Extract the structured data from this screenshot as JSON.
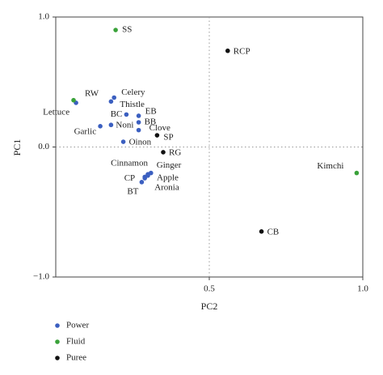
{
  "chart_data": {
    "type": "scatter",
    "x_label": "PC2",
    "y_label": "PC1",
    "xlim": [
      0,
      1
    ],
    "ylim": [
      -1,
      1
    ],
    "xticks": [
      0.5,
      {
        "value": 1,
        "label": "1.0"
      }
    ],
    "yticks": [
      {
        "value": -1,
        "label": "−1.0"
      },
      {
        "value": 0,
        "label": "0.0"
      },
      {
        "value": 1,
        "label": "1.0"
      }
    ],
    "reference_lines": {
      "x": 0.5,
      "y": 0
    },
    "legend": "bottom-left",
    "series": [
      {
        "name": "Power",
        "color": "#3b5fc0",
        "labels": [
          "Lettuce",
          "Celery",
          "Thistle",
          "BC",
          "EB",
          "BB",
          "Noni",
          "Garlic",
          "Clove",
          "Oinon",
          "Cinnamon",
          "Ginger",
          "CP",
          "Apple",
          "Aronia",
          "BT"
        ],
        "x": [
          0.066,
          0.19,
          0.18,
          0.23,
          0.27,
          0.27,
          0.18,
          0.145,
          0.27,
          0.22,
          0.3,
          0.31,
          0.29,
          0.3,
          0.29,
          0.28
        ],
        "y": [
          0.34,
          0.38,
          0.35,
          0.25,
          0.24,
          0.19,
          0.17,
          0.16,
          0.13,
          0.04,
          -0.21,
          -0.2,
          -0.23,
          -0.22,
          -0.24,
          -0.27
        ]
      },
      {
        "name": "Fluid",
        "color": "#3aa23a",
        "labels": [
          "SS",
          "RW",
          "Kimchi"
        ],
        "x": [
          0.195,
          0.058,
          0.98
        ],
        "y": [
          0.9,
          0.36,
          -0.2
        ]
      },
      {
        "name": "Puree",
        "color": "#111111",
        "labels": [
          "RCP",
          "SP",
          "RG",
          "CB"
        ],
        "x": [
          0.56,
          0.33,
          0.35,
          0.67
        ],
        "y": [
          0.74,
          0.09,
          -0.04,
          -0.65
        ]
      }
    ]
  }
}
